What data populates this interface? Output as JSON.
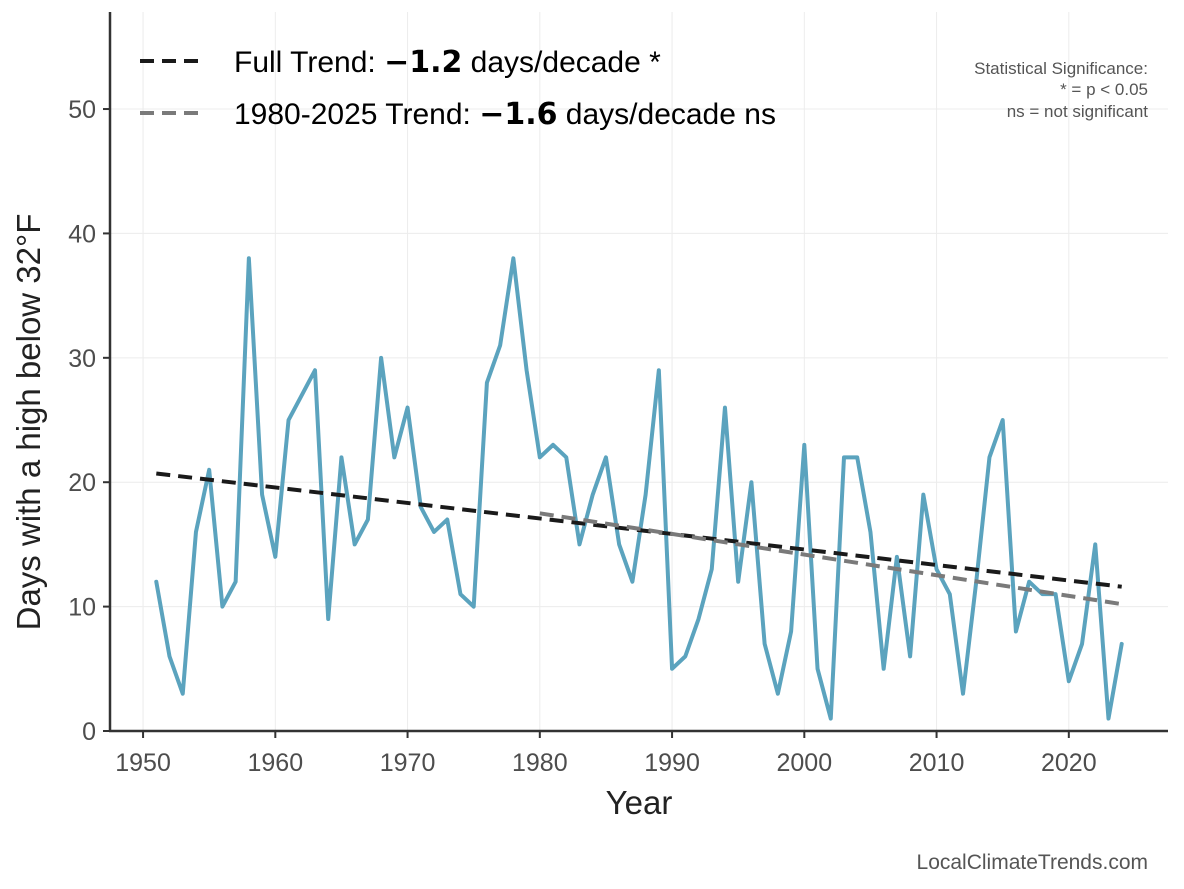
{
  "chart_data": {
    "type": "line",
    "title": "",
    "xlabel": "Year",
    "ylabel": "Days with a high below 32°F",
    "xlim": [
      1947.5,
      2027.5
    ],
    "ylim": [
      0,
      57.8
    ],
    "x_ticks": [
      1950,
      1960,
      1970,
      1980,
      1990,
      2000,
      2010,
      2020
    ],
    "y_ticks": [
      0,
      10,
      20,
      30,
      40,
      50
    ],
    "grid": true,
    "legend_position": "top-left",
    "series": [
      {
        "color": "#5ba3be",
        "x": [
          1951,
          1952,
          1953,
          1954,
          1955,
          1956,
          1957,
          1958,
          1959,
          1960,
          1961,
          1962,
          1963,
          1964,
          1965,
          1966,
          1967,
          1968,
          1969,
          1970,
          1971,
          1972,
          1973,
          1974,
          1975,
          1976,
          1977,
          1978,
          1979,
          1980,
          1981,
          1982,
          1983,
          1984,
          1985,
          1986,
          1987,
          1988,
          1989,
          1990,
          1991,
          1992,
          1993,
          1994,
          1995,
          1996,
          1997,
          1998,
          1999,
          2000,
          2001,
          2002,
          2003,
          2004,
          2005,
          2006,
          2007,
          2008,
          2009,
          2010,
          2011,
          2012,
          2013,
          2014,
          2015,
          2016,
          2017,
          2018,
          2019,
          2020,
          2021,
          2022,
          2023,
          2024
        ],
        "y": [
          12,
          6,
          3,
          16,
          21,
          10,
          12,
          38,
          19,
          14,
          25,
          27,
          29,
          9,
          22,
          15,
          17,
          30,
          22,
          26,
          18,
          16,
          17,
          11,
          10,
          28,
          31,
          38,
          29,
          22,
          23,
          22,
          15,
          19,
          22,
          15,
          12,
          19,
          29,
          5,
          6,
          9,
          13,
          26,
          12,
          20,
          7,
          3,
          8,
          23,
          5,
          1,
          22,
          22,
          16,
          5,
          14,
          6,
          19,
          13,
          11,
          3,
          12,
          22,
          25,
          8,
          12,
          11,
          11,
          4,
          7,
          15,
          1,
          7
        ]
      },
      {
        "name": "Full Trend",
        "color": "#1a1a1a",
        "dashed": true,
        "x": [
          1951,
          2024
        ],
        "y": [
          20.7,
          11.6
        ]
      },
      {
        "name": "1980-2025 Trend",
        "color": "#7a7a7a",
        "dashed": true,
        "x": [
          1980,
          2024
        ],
        "y": [
          17.5,
          10.2
        ]
      }
    ],
    "legend": [
      {
        "prefix": "Full Trend: ",
        "value": "−1.2",
        "suffix": " days/decade *",
        "color": "#1a1a1a"
      },
      {
        "prefix": "1980-2025 Trend: ",
        "value": "−1.6",
        "suffix": " days/decade ns",
        "color": "#7a7a7a"
      }
    ],
    "annotations": {
      "significance_title": "Statistical Significance:",
      "significance_line1": "* = p < 0.05",
      "significance_line2": "ns = not significant",
      "credit": "LocalClimateTrends.com"
    }
  }
}
